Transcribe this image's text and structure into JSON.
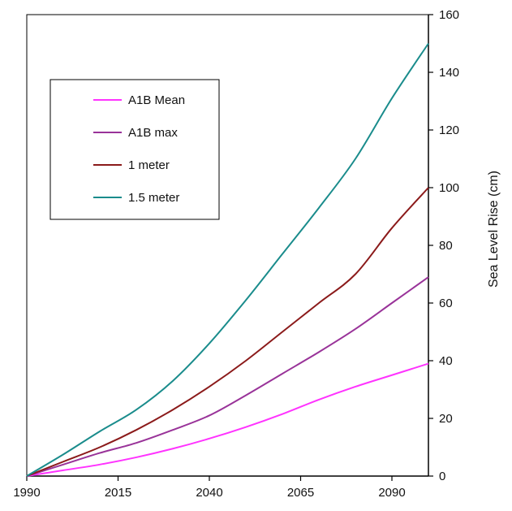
{
  "chart_data": {
    "type": "line",
    "title": "",
    "xlabel": "",
    "ylabel": "Sea Level Rise (cm)",
    "xlim": [
      1990,
      2100
    ],
    "ylim": [
      0,
      160
    ],
    "xticks": [
      1990,
      2015,
      2040,
      2065,
      2090
    ],
    "yticks": [
      0,
      20,
      40,
      60,
      80,
      100,
      120,
      140,
      160
    ],
    "y_axis_side": "right",
    "grid": false,
    "legend_position": "top-left",
    "x": [
      1990,
      2000,
      2010,
      2020,
      2030,
      2040,
      2050,
      2060,
      2070,
      2080,
      2090,
      2100
    ],
    "series": [
      {
        "name": "A1B Mean",
        "color": "#ff33ff",
        "values": [
          0,
          2,
          4,
          6.5,
          9.5,
          13,
          17,
          21.5,
          26.5,
          31,
          35,
          39
        ]
      },
      {
        "name": "A1B max",
        "color": "#993399",
        "values": [
          0,
          4,
          8,
          11.5,
          16,
          21,
          28,
          35.5,
          43,
          51,
          60,
          69
        ]
      },
      {
        "name": "1 meter",
        "color": "#8b1a1a",
        "values": [
          0,
          5,
          10,
          16,
          23,
          31,
          40,
          50,
          60,
          70,
          86,
          100
        ]
      },
      {
        "name": "1.5 meter",
        "color": "#1a8c8c",
        "values": [
          0,
          7.5,
          15.5,
          23,
          33,
          46,
          61,
          77,
          93,
          110,
          131,
          150
        ]
      }
    ]
  }
}
